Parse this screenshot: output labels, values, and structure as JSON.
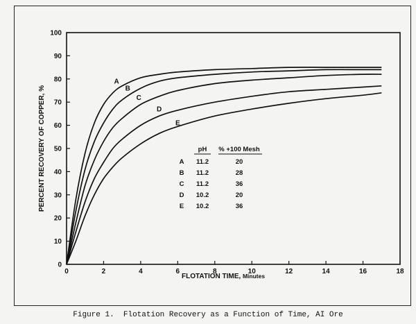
{
  "chart_data": {
    "type": "line",
    "caption": "Figure 1.  Flotation Recovery as a Function of Time, AI Ore",
    "xlabel": "FLOTATION TIME,",
    "xlabel_unit": "Minutes",
    "ylabel": "PERCENT RECOVERY OF COPPER, %",
    "xlim": [
      0,
      18
    ],
    "ylim": [
      0,
      100
    ],
    "x_ticks": [
      0,
      2,
      4,
      6,
      8,
      10,
      12,
      14,
      16,
      18
    ],
    "y_ticks": [
      0,
      10,
      20,
      30,
      40,
      50,
      60,
      70,
      80,
      90,
      100
    ],
    "grid": false,
    "series": [
      {
        "name": "A",
        "x": [
          0,
          0.5,
          1,
          1.5,
          2,
          2.5,
          3,
          4,
          5,
          6,
          8,
          10,
          12,
          14,
          16,
          17
        ],
        "y": [
          0,
          28,
          48,
          61,
          69,
          74,
          77,
          80.5,
          82,
          83,
          84,
          84.5,
          85,
          85,
          85,
          85
        ]
      },
      {
        "name": "B",
        "x": [
          0,
          0.5,
          1,
          1.5,
          2,
          2.5,
          3,
          4,
          5,
          6,
          8,
          10,
          12,
          14,
          16,
          17
        ],
        "y": [
          0,
          23,
          41,
          53,
          61,
          67,
          71,
          76,
          79,
          80.5,
          82,
          83,
          83.5,
          84,
          84,
          84
        ]
      },
      {
        "name": "C",
        "x": [
          0,
          0.5,
          1,
          1.5,
          2,
          2.5,
          3,
          4,
          5,
          6,
          8,
          10,
          12,
          14,
          16,
          17
        ],
        "y": [
          0,
          18,
          34,
          45,
          53,
          59,
          63,
          69,
          72.5,
          75,
          78,
          79.5,
          80.5,
          81.5,
          82,
          82
        ]
      },
      {
        "name": "D",
        "x": [
          0,
          0.5,
          1,
          1.5,
          2,
          2.5,
          3,
          4,
          5,
          6,
          8,
          10,
          12,
          14,
          16,
          17
        ],
        "y": [
          0,
          14,
          27,
          37,
          44,
          50,
          54,
          60,
          64,
          66.5,
          70,
          72.5,
          74.5,
          75.5,
          76.5,
          77
        ]
      },
      {
        "name": "E",
        "x": [
          0,
          0.5,
          1,
          1.5,
          2,
          2.5,
          3,
          4,
          5,
          6,
          8,
          10,
          12,
          14,
          16,
          17
        ],
        "y": [
          0,
          10,
          21,
          30,
          37,
          42,
          46,
          52,
          56.5,
          59.5,
          64,
          67,
          69.5,
          71.5,
          73,
          74
        ]
      }
    ],
    "label_points": [
      {
        "name": "A",
        "x": 2.7,
        "y": 78
      },
      {
        "name": "B",
        "x": 3.3,
        "y": 75
      },
      {
        "name": "C",
        "x": 3.9,
        "y": 71
      },
      {
        "name": "D",
        "x": 5.0,
        "y": 66
      },
      {
        "name": "E",
        "x": 6.0,
        "y": 60
      }
    ],
    "table": {
      "headers": [
        "",
        "pH",
        "% +100 Mesh"
      ],
      "rows": [
        [
          "A",
          "11.2",
          "20"
        ],
        [
          "B",
          "11.2",
          "28"
        ],
        [
          "C",
          "11.2",
          "36"
        ],
        [
          "D",
          "10.2",
          "20"
        ],
        [
          "E",
          "10.2",
          "36"
        ]
      ]
    }
  }
}
